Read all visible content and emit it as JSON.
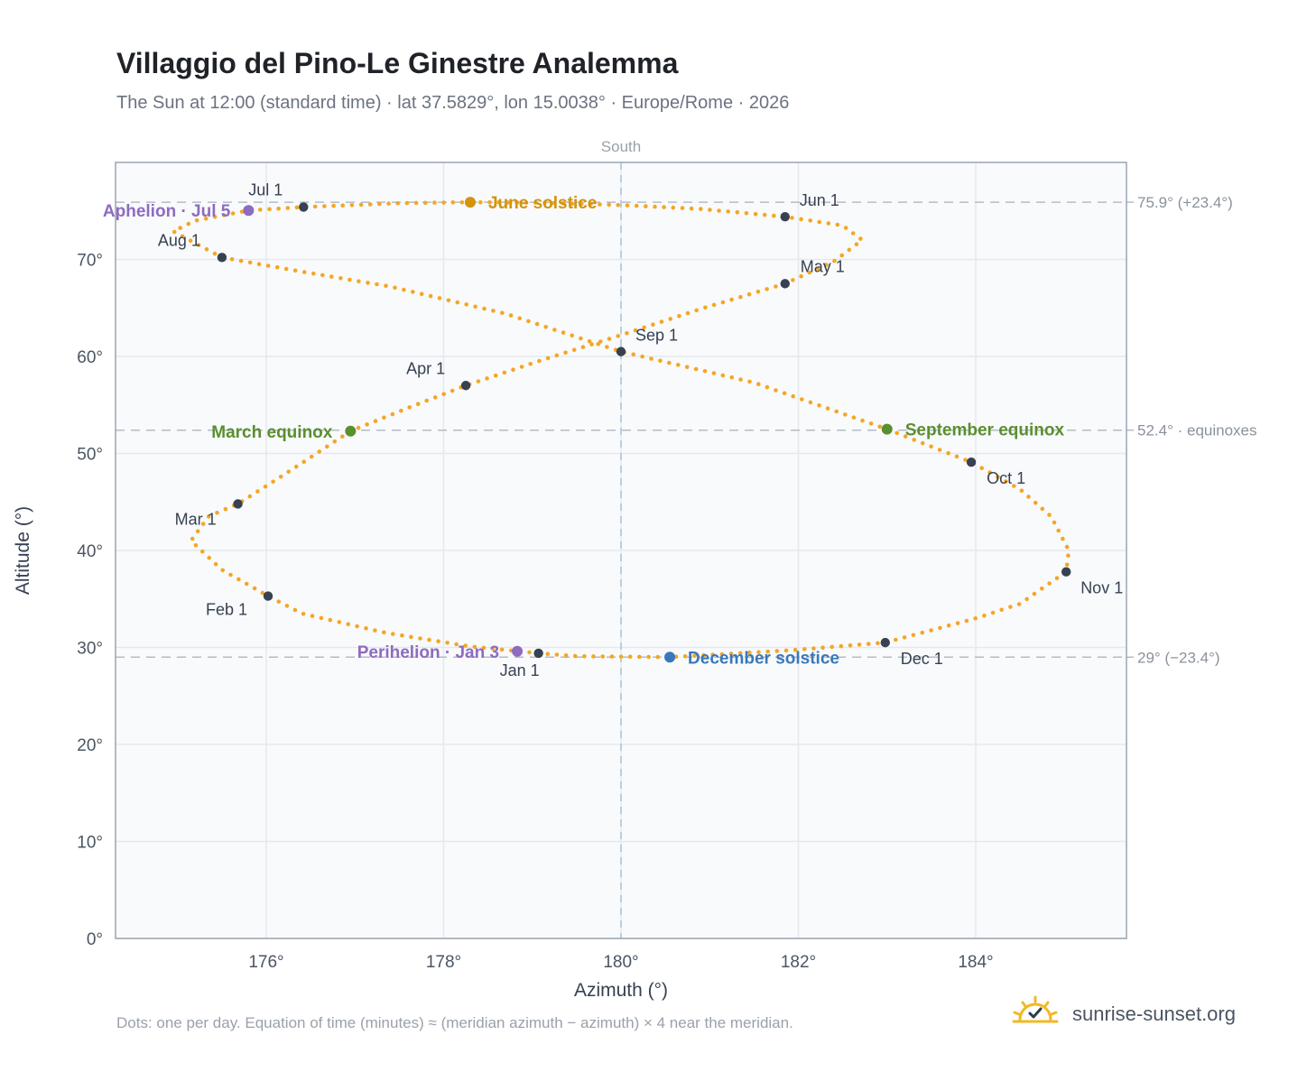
{
  "title": "Villaggio del Pino-Le Ginestre Analemma",
  "subtitle": "The Sun at 12:00 (standard time) · lat 37.5829°, lon 15.0038° · Europe/Rome · 2026",
  "footnote": "Dots: one per day. Equation of time (minutes) ≈ (meridian azimuth − azimuth) × 4 near the meridian.",
  "brand": {
    "name": "sunrise-sunset.org",
    "icon": "sun-check-icon"
  },
  "colors": {
    "path": "#f5a623",
    "month_marker": "#374151",
    "solstice_june": "#d4930d",
    "solstice_december": "#3a78b9",
    "equinox": "#5a8f2e",
    "apsis": "#8e6bbf",
    "reference_line": "#b5bcc6",
    "plot_background": "#f8fafc",
    "grid": "#e5e9ef"
  },
  "chart_data": {
    "type": "scatter",
    "xlabel": "Azimuth (°)",
    "ylabel": "Altitude (°)",
    "xlim": [
      174.3,
      185.7
    ],
    "ylim": [
      0,
      80
    ],
    "xticks": [
      176,
      178,
      180,
      182,
      184
    ],
    "xtick_labels": [
      "176°",
      "178°",
      "180°",
      "182°",
      "184°"
    ],
    "yticks": [
      0,
      10,
      20,
      30,
      40,
      50,
      60,
      70
    ],
    "ytick_labels": [
      "0°",
      "10°",
      "20°",
      "30°",
      "40°",
      "50°",
      "60°",
      "70°"
    ],
    "grid": true,
    "meridian": {
      "azimuth": 180,
      "label": "South"
    },
    "reference_lines": [
      {
        "altitude": 75.9,
        "label": "75.9° (+23.4°)"
      },
      {
        "altitude": 52.4,
        "label": "52.4° · equinoxes"
      },
      {
        "altitude": 29,
        "label": "29° (−23.4°)"
      }
    ],
    "analemma_path": [
      [
        179.07,
        29.4
      ],
      [
        178.3,
        30.1
      ],
      [
        177.35,
        31.5
      ],
      [
        176.4,
        33.5
      ],
      [
        176.02,
        35.3
      ],
      [
        175.5,
        38.0
      ],
      [
        175.15,
        41.0
      ],
      [
        175.35,
        43.5
      ],
      [
        175.68,
        44.8
      ],
      [
        176.2,
        47.8
      ],
      [
        176.95,
        52.3
      ],
      [
        177.6,
        54.7
      ],
      [
        178.25,
        57.0
      ],
      [
        179.1,
        59.6
      ],
      [
        180.0,
        62.2
      ],
      [
        180.9,
        64.9
      ],
      [
        181.85,
        67.5
      ],
      [
        182.4,
        69.8
      ],
      [
        182.72,
        72.0
      ],
      [
        182.5,
        73.5
      ],
      [
        181.85,
        74.4
      ],
      [
        180.9,
        75.2
      ],
      [
        180.0,
        75.6
      ],
      [
        179.1,
        75.85
      ],
      [
        178.3,
        75.9
      ],
      [
        177.5,
        75.8
      ],
      [
        176.42,
        75.4
      ],
      [
        175.8,
        75.05
      ],
      [
        175.2,
        74.0
      ],
      [
        174.95,
        72.9
      ],
      [
        175.5,
        70.2
      ],
      [
        176.3,
        68.9
      ],
      [
        177.4,
        67.2
      ],
      [
        178.7,
        64.4
      ],
      [
        180.0,
        60.5
      ],
      [
        181.5,
        57.3
      ],
      [
        183.0,
        52.5
      ],
      [
        183.95,
        49.1
      ],
      [
        184.5,
        46.3
      ],
      [
        184.85,
        43.5
      ],
      [
        185.05,
        40.0
      ],
      [
        185.02,
        37.8
      ],
      [
        184.5,
        34.5
      ],
      [
        184.0,
        33.0
      ],
      [
        182.98,
        30.5
      ],
      [
        181.9,
        29.7
      ],
      [
        180.55,
        29.0
      ],
      [
        179.5,
        29.1
      ],
      [
        179.07,
        29.4
      ]
    ],
    "month_markers": [
      {
        "label": "Jan 1",
        "azimuth": 179.07,
        "altitude": 29.4
      },
      {
        "label": "Feb 1",
        "azimuth": 176.02,
        "altitude": 35.3
      },
      {
        "label": "Mar 1",
        "azimuth": 175.68,
        "altitude": 44.8
      },
      {
        "label": "Apr 1",
        "azimuth": 178.25,
        "altitude": 57.0
      },
      {
        "label": "May 1",
        "azimuth": 181.85,
        "altitude": 67.5
      },
      {
        "label": "Jun 1",
        "azimuth": 181.85,
        "altitude": 74.4
      },
      {
        "label": "Jul 1",
        "azimuth": 176.42,
        "altitude": 75.4
      },
      {
        "label": "Aug 1",
        "azimuth": 175.5,
        "altitude": 70.2
      },
      {
        "label": "Sep 1",
        "azimuth": 180.0,
        "altitude": 60.5
      },
      {
        "label": "Oct 1",
        "azimuth": 183.95,
        "altitude": 49.1
      },
      {
        "label": "Nov 1",
        "azimuth": 185.02,
        "altitude": 37.8
      },
      {
        "label": "Dec 1",
        "azimuth": 182.98,
        "altitude": 30.5
      }
    ],
    "events": [
      {
        "label": "June solstice",
        "azimuth": 178.3,
        "altitude": 75.9,
        "color": "#d4930d"
      },
      {
        "label": "December solstice",
        "azimuth": 180.55,
        "altitude": 29.0,
        "color": "#3a78b9"
      },
      {
        "label": "March equinox",
        "azimuth": 176.95,
        "altitude": 52.3,
        "color": "#5a8f2e"
      },
      {
        "label": "September equinox",
        "azimuth": 183.0,
        "altitude": 52.5,
        "color": "#5a8f2e"
      },
      {
        "label": "Perihelion · Jan 3",
        "azimuth": 178.83,
        "altitude": 29.6,
        "color": "#8e6bbf"
      },
      {
        "label": "Aphelion · Jul 5",
        "azimuth": 175.8,
        "altitude": 75.05,
        "color": "#8e6bbf"
      }
    ]
  }
}
